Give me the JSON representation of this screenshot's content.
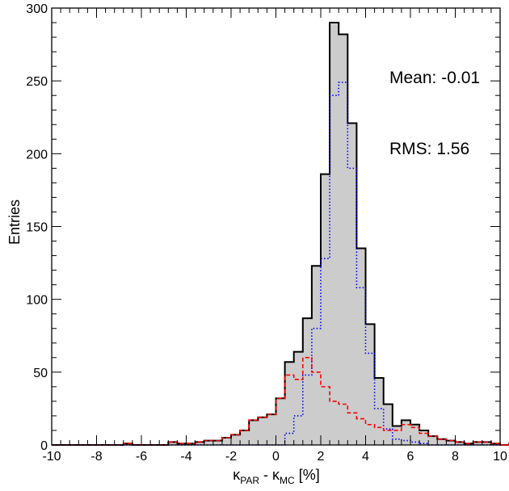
{
  "chart_data": {
    "type": "histogram",
    "xlabel": {
      "base": "κ",
      "sub1": "PAR",
      "mid": " - κ",
      "sub2": "MC",
      "tail": " [%]"
    },
    "ylabel": "Entries",
    "xlim": [
      -10,
      10
    ],
    "ylim": [
      0,
      300
    ],
    "bin_width": 0.4,
    "x_ticks": [
      -10,
      -8,
      -6,
      -4,
      -2,
      0,
      2,
      4,
      6,
      8,
      10
    ],
    "y_ticks": [
      0,
      50,
      100,
      150,
      200,
      250,
      300
    ],
    "annotations": {
      "mean": "Mean: -0.01",
      "rms": "RMS:  1.56"
    },
    "series": [
      {
        "style": "black solid, gray filled",
        "color": "#000000",
        "fill": "#cccccc",
        "values": [
          0,
          0,
          0,
          0,
          0,
          0,
          0,
          0,
          1,
          0,
          0,
          0,
          0,
          2,
          1,
          1,
          2,
          3,
          3,
          5,
          7,
          10,
          17,
          19,
          21,
          32,
          57,
          64,
          87,
          123,
          186,
          290,
          282,
          221,
          135,
          83,
          46,
          28,
          13,
          17,
          14,
          10,
          6,
          4,
          3,
          2,
          1,
          2,
          2,
          1,
          0,
          1,
          2,
          0,
          0,
          1,
          1,
          0,
          0,
          0
        ]
      },
      {
        "style": "blue dotted",
        "color": "#0000ff",
        "values": [
          0,
          0,
          0,
          0,
          0,
          0,
          0,
          0,
          0,
          0,
          0,
          0,
          0,
          0,
          0,
          0,
          0,
          0,
          0,
          0,
          0,
          0,
          0,
          0,
          0,
          0,
          8,
          20,
          48,
          80,
          128,
          240,
          249,
          190,
          108,
          63,
          25,
          11,
          4,
          3,
          2,
          1,
          0,
          0,
          0,
          0,
          0,
          0,
          0,
          0,
          0,
          0,
          0,
          0,
          0,
          0,
          0,
          0,
          0,
          0
        ]
      },
      {
        "style": "red dashed",
        "color": "#ff0000",
        "values": [
          0,
          0,
          0,
          0,
          0,
          0,
          0,
          0,
          1,
          0,
          0,
          0,
          0,
          2,
          1,
          1,
          2,
          3,
          3,
          5,
          7,
          10,
          17,
          19,
          21,
          32,
          48,
          45,
          60,
          50,
          40,
          30,
          28,
          22,
          18,
          14,
          12,
          10,
          10,
          14,
          12,
          8,
          6,
          4,
          3,
          2,
          1,
          2,
          2,
          1,
          0,
          1,
          2,
          0,
          0,
          1,
          1,
          0,
          0,
          0
        ]
      }
    ]
  }
}
